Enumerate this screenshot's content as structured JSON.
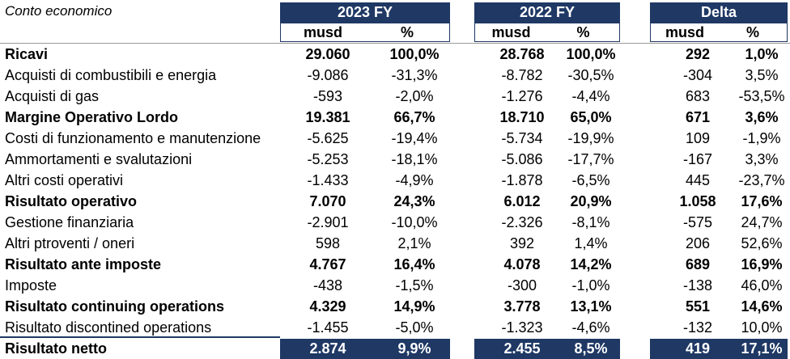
{
  "table": {
    "title": "Conto economico",
    "groups": [
      {
        "label": "2023 FY"
      },
      {
        "label": "2022 FY"
      },
      {
        "label": "Delta"
      }
    ],
    "subheaders": [
      "musd",
      "%"
    ],
    "rows": [
      {
        "label": "Ricavi",
        "bold": true,
        "cells": [
          "29.060",
          "100,0%",
          "28.768",
          "100,0%",
          "292",
          "1,0%"
        ]
      },
      {
        "label": "Acquisti di combustibili e energia",
        "bold": false,
        "cells": [
          "-9.086",
          "-31,3%",
          "-8.782",
          "-30,5%",
          "-304",
          "3,5%"
        ]
      },
      {
        "label": "Acquisti di gas",
        "bold": false,
        "cells": [
          "-593",
          "-2,0%",
          "-1.276",
          "-4,4%",
          "683",
          "-53,5%"
        ]
      },
      {
        "label": "Margine Operativo Lordo",
        "bold": true,
        "cells": [
          "19.381",
          "66,7%",
          "18.710",
          "65,0%",
          "671",
          "3,6%"
        ]
      },
      {
        "label": "Costi di funzionamento e manutenzione",
        "bold": false,
        "cells": [
          "-5.625",
          "-19,4%",
          "-5.734",
          "-19,9%",
          "109",
          "-1,9%"
        ]
      },
      {
        "label": "Ammortamenti e svalutazioni",
        "bold": false,
        "cells": [
          "-5.253",
          "-18,1%",
          "-5.086",
          "-17,7%",
          "-167",
          "3,3%"
        ]
      },
      {
        "label": "Altri costi operativi",
        "bold": false,
        "cells": [
          "-1.433",
          "-4,9%",
          "-1.878",
          "-6,5%",
          "445",
          "-23,7%"
        ]
      },
      {
        "label": "Risultato operativo",
        "bold": true,
        "cells": [
          "7.070",
          "24,3%",
          "6.012",
          "20,9%",
          "1.058",
          "17,6%"
        ]
      },
      {
        "label": "Gestione finanziaria",
        "bold": false,
        "cells": [
          "-2.901",
          "-10,0%",
          "-2.326",
          "-8,1%",
          "-575",
          "24,7%"
        ]
      },
      {
        "label": "Altri ptroventi / oneri",
        "bold": false,
        "cells": [
          "598",
          "2,1%",
          "392",
          "1,4%",
          "206",
          "52,6%"
        ]
      },
      {
        "label": "Risultato ante imposte",
        "bold": true,
        "cells": [
          "4.767",
          "16,4%",
          "4.078",
          "14,2%",
          "689",
          "16,9%"
        ]
      },
      {
        "label": "Imposte",
        "bold": false,
        "cells": [
          "-438",
          "-1,5%",
          "-300",
          "-1,0%",
          "-138",
          "46,0%"
        ]
      },
      {
        "label": "Risultato continuing operations",
        "bold": true,
        "cells": [
          "4.329",
          "14,9%",
          "3.778",
          "13,1%",
          "551",
          "14,6%"
        ]
      },
      {
        "label": "Risultato discontined operations",
        "bold": false,
        "cells": [
          "-1.455",
          "-5,0%",
          "-1.323",
          "-4,6%",
          "-132",
          "10,0%"
        ]
      },
      {
        "label": "Risultato netto",
        "bold": true,
        "final": true,
        "cells": [
          "2.874",
          "9,9%",
          "2.455",
          "8,5%",
          "419",
          "17,1%"
        ]
      }
    ]
  },
  "colors": {
    "header_bg": "#1f3864",
    "header_text": "#ffffff",
    "separator": "#9a9a9a"
  }
}
